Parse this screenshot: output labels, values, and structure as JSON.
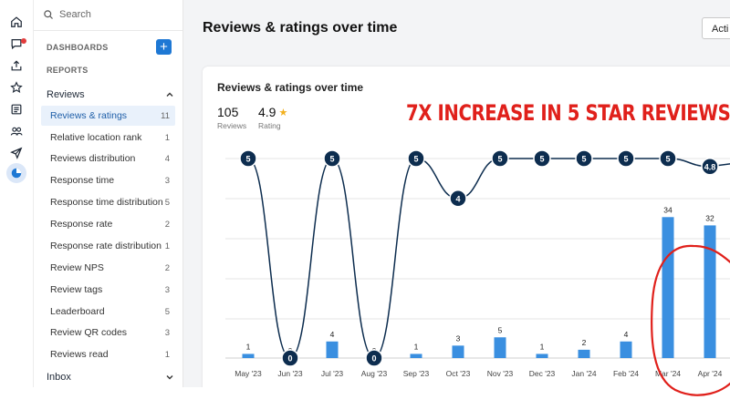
{
  "rail": {
    "icons": [
      "home-icon",
      "chat-icon",
      "upload-icon",
      "star-icon",
      "list-icon",
      "people-icon",
      "send-icon",
      "reports-icon"
    ]
  },
  "sidebar": {
    "search_placeholder": "Search",
    "dashboards_label": "DASHBOARDS",
    "reports_label": "REPORTS",
    "reviews_group": "Reviews",
    "items": [
      {
        "label": "Reviews & ratings",
        "count": "11",
        "active": true
      },
      {
        "label": "Relative location rank",
        "count": "1"
      },
      {
        "label": "Reviews distribution",
        "count": "4"
      },
      {
        "label": "Response time",
        "count": "3"
      },
      {
        "label": "Response time distribution",
        "count": "5"
      },
      {
        "label": "Response rate",
        "count": "2"
      },
      {
        "label": "Response rate distribution",
        "count": "1"
      },
      {
        "label": "Review NPS",
        "count": "2"
      },
      {
        "label": "Review tags",
        "count": "3"
      },
      {
        "label": "Leaderboard",
        "count": "5"
      },
      {
        "label": "Review QR codes",
        "count": "3"
      },
      {
        "label": "Reviews read",
        "count": "1"
      }
    ],
    "inbox_group": "Inbox"
  },
  "header": {
    "title": "Reviews & ratings over time",
    "actions_label": "Acti"
  },
  "card": {
    "title": "Reviews & ratings over time",
    "reviews_value": "105",
    "reviews_label": "Reviews",
    "rating_value": "4.9",
    "rating_label": "Rating"
  },
  "annotation": {
    "headline": "7X INCREASE IN 5 STAR REVIEWS"
  },
  "colors": {
    "accent": "#1e78d4",
    "bar": "#3a8fe0",
    "line": "#0d2d4f",
    "annotation": "#e0201b"
  },
  "chart_data": {
    "type": "bar",
    "categories": [
      "May '23",
      "Jun '23",
      "Jul '23",
      "Aug '23",
      "Sep '23",
      "Oct '23",
      "Nov '23",
      "Dec '23",
      "Jan '24",
      "Feb '24",
      "Mar '24",
      "Apr '24"
    ],
    "series": [
      {
        "type": "bar",
        "values": [
          1,
          0,
          4,
          0,
          1,
          3,
          5,
          1,
          2,
          4,
          34,
          32
        ]
      },
      {
        "type": "line",
        "values": [
          5,
          0,
          5,
          0,
          5,
          4,
          5,
          5,
          5,
          5,
          5,
          4.8
        ]
      }
    ],
    "bar_ylim": [
      0,
      50
    ],
    "line_ylim": [
      0,
      5
    ],
    "grid": true
  }
}
